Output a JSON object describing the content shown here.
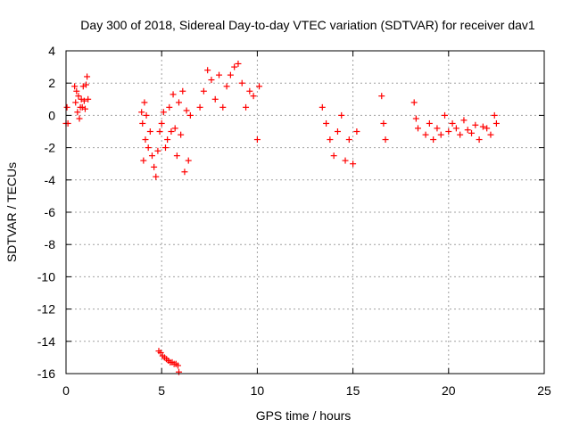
{
  "chart_data": {
    "type": "scatter",
    "title": "Day 300 of 2018, Sidereal Day-to-day VTEC variation (SDTVAR) for receiver dav1",
    "xlabel": "GPS time / hours",
    "ylabel": "SDTVAR / TECUs",
    "xlim": [
      0,
      25
    ],
    "ylim": [
      -16,
      4
    ],
    "xticks": [
      0,
      5,
      10,
      15,
      20,
      25
    ],
    "yticks": [
      4,
      2,
      0,
      -2,
      -4,
      -6,
      -8,
      -10,
      -12,
      -14,
      -16
    ],
    "xtick_labels": [
      "0",
      "5",
      "10",
      "15",
      "20",
      "25"
    ],
    "ytick_labels": [
      "4",
      "2",
      "0",
      "-2",
      "-4",
      "-6",
      "-8",
      "-10",
      "-12",
      "-14",
      "-16"
    ],
    "grid": true,
    "marker": "+",
    "color": "#ff0000",
    "series": [
      {
        "name": "dav1",
        "x": [
          0.0,
          0.05,
          0.1,
          0.45,
          0.5,
          0.55,
          0.6,
          0.65,
          0.7,
          0.75,
          0.8,
          0.85,
          0.9,
          0.95,
          1.0,
          1.05,
          1.1,
          1.15,
          3.95,
          4.0,
          4.05,
          4.1,
          4.15,
          4.2,
          4.3,
          4.4,
          4.5,
          4.6,
          4.7,
          4.8,
          4.9,
          5.0,
          5.1,
          5.2,
          5.3,
          5.4,
          5.5,
          5.6,
          5.7,
          5.8,
          5.9,
          6.0,
          6.1,
          6.2,
          6.3,
          6.4,
          6.5,
          4.85,
          4.95,
          5.05,
          5.15,
          5.25,
          5.35,
          5.45,
          5.55,
          5.65,
          5.75,
          5.85,
          5.9,
          7.0,
          7.2,
          7.4,
          7.6,
          7.8,
          8.0,
          8.2,
          8.4,
          8.6,
          8.8,
          9.0,
          9.2,
          9.4,
          9.6,
          9.8,
          10.0,
          10.1,
          13.4,
          13.6,
          13.8,
          14.0,
          14.2,
          14.4,
          14.6,
          14.8,
          15.0,
          15.2,
          16.5,
          16.6,
          16.7,
          18.2,
          18.3,
          18.4,
          18.8,
          19.0,
          19.2,
          19.4,
          19.6,
          19.8,
          20.0,
          20.2,
          20.4,
          20.6,
          20.8,
          21.0,
          21.2,
          21.4,
          21.6,
          21.8,
          22.0,
          22.2,
          22.4,
          22.5
        ],
        "y": [
          -0.5,
          0.5,
          -0.5,
          1.8,
          0.8,
          1.5,
          0.2,
          1.2,
          -0.2,
          0.5,
          1.0,
          0.5,
          1.8,
          0.9,
          0.4,
          1.9,
          2.4,
          1.0,
          0.2,
          -0.5,
          -2.8,
          0.8,
          -1.5,
          0.0,
          -2.0,
          -1.0,
          -2.5,
          -3.2,
          -3.8,
          -2.2,
          -1.0,
          -0.5,
          0.2,
          -2.0,
          -1.5,
          0.5,
          -1.0,
          1.3,
          -0.8,
          -2.5,
          0.8,
          -1.2,
          1.5,
          -3.5,
          0.3,
          -2.8,
          0.0,
          -14.6,
          -14.7,
          -14.9,
          -15.0,
          -15.1,
          -15.2,
          -15.3,
          -15.3,
          -15.4,
          -15.4,
          -15.5,
          -15.9,
          0.5,
          1.5,
          2.8,
          2.2,
          1.0,
          2.5,
          0.5,
          1.8,
          2.5,
          3.0,
          3.2,
          2.0,
          0.5,
          1.5,
          1.2,
          -1.5,
          1.8,
          0.5,
          -0.5,
          -1.5,
          -2.5,
          -1.0,
          0.0,
          -2.8,
          -1.5,
          -3.0,
          -1.0,
          1.2,
          -0.5,
          -1.5,
          0.8,
          -0.2,
          -0.8,
          -1.2,
          -0.5,
          -1.5,
          -0.8,
          -1.2,
          0.0,
          -1.0,
          -0.5,
          -0.8,
          -1.2,
          -0.3,
          -0.9,
          -1.1,
          -0.6,
          -1.5,
          -0.7,
          -0.8,
          -1.2,
          0.0,
          -0.5
        ]
      }
    ]
  }
}
